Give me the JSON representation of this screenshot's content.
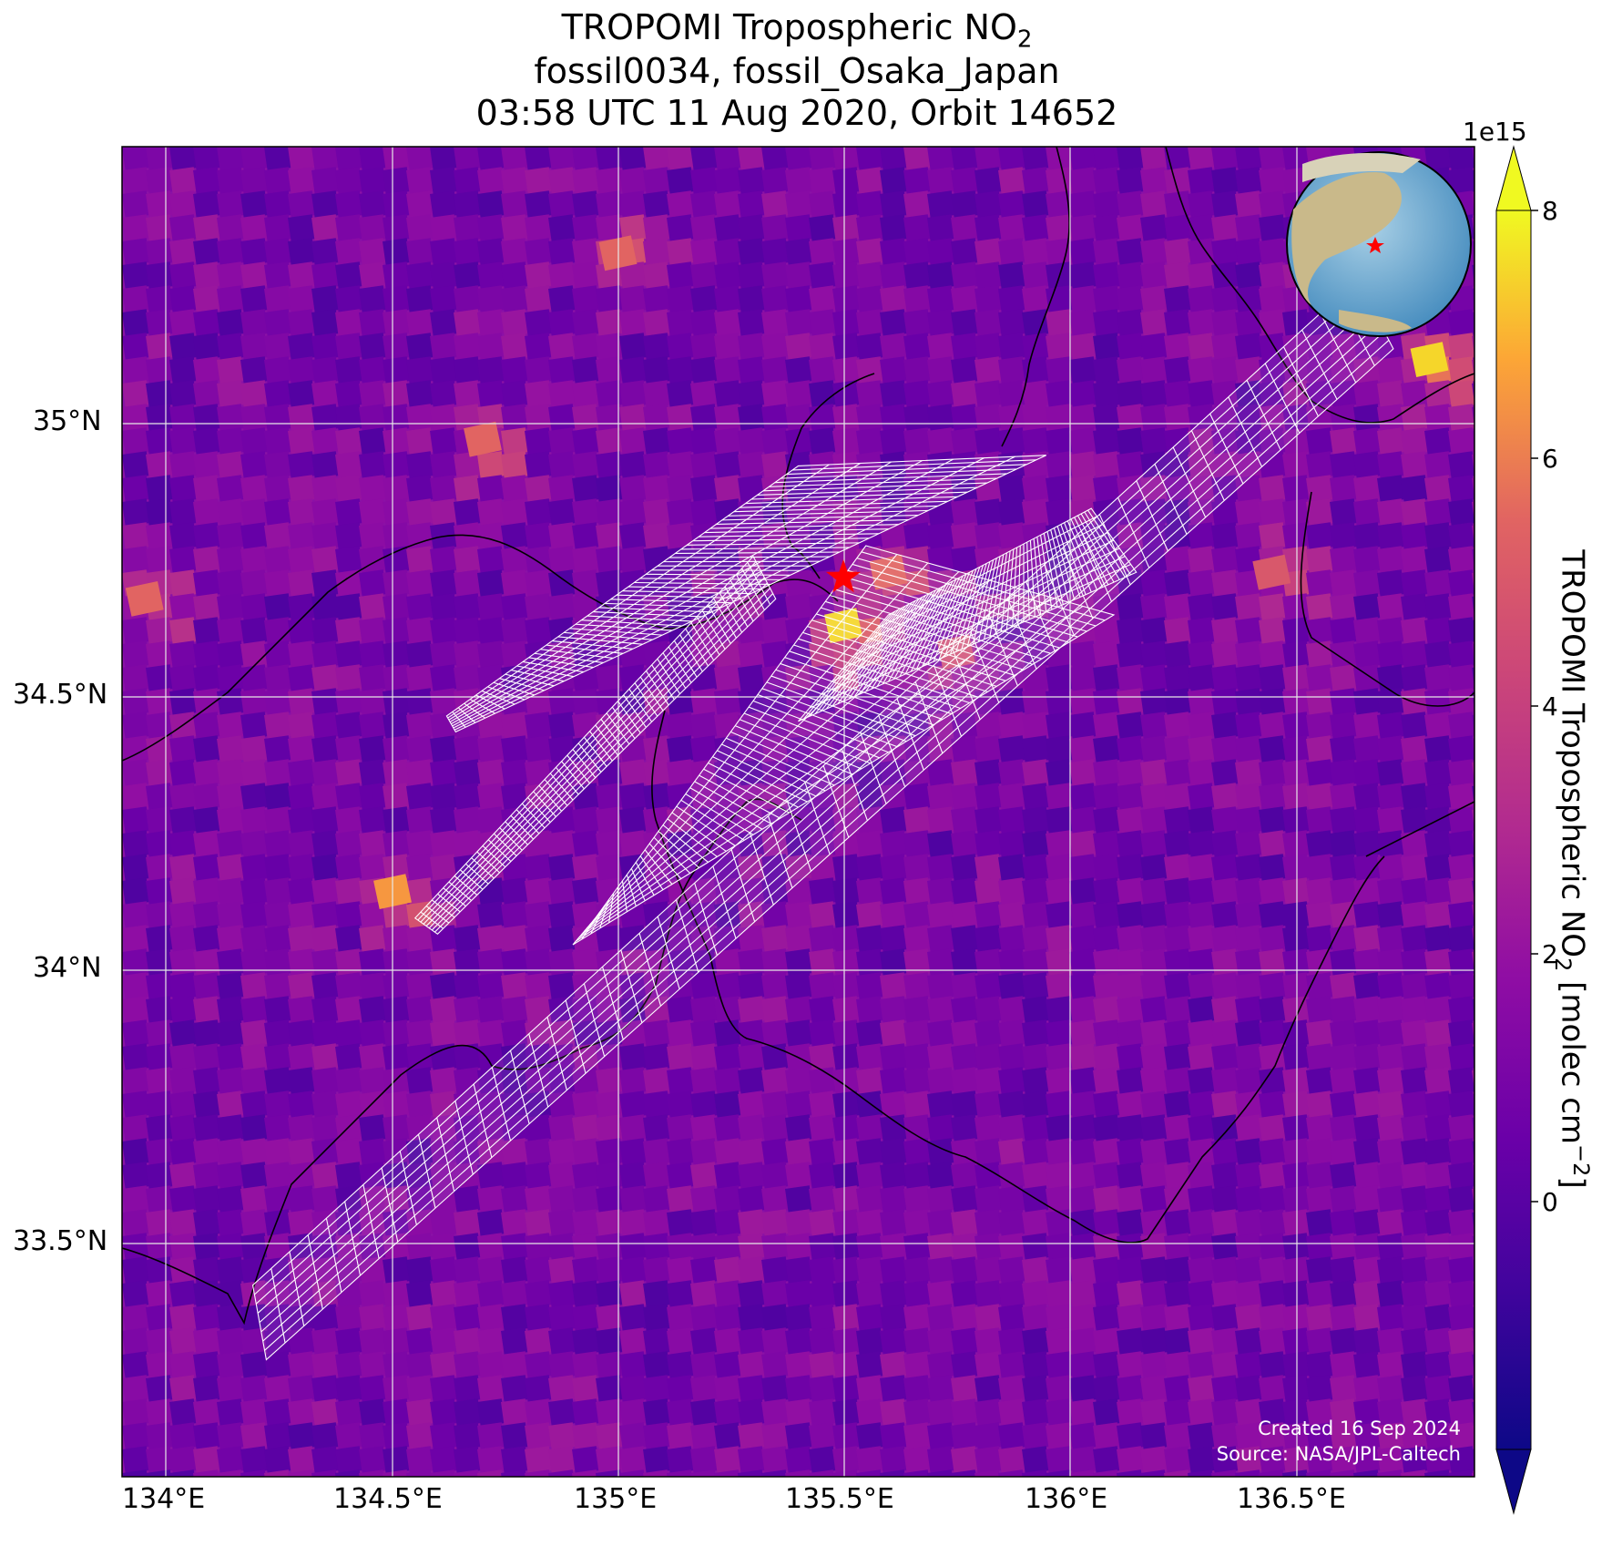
{
  "figure": {
    "title_line1_main": "TROPOMI Tropospheric NO",
    "title_line1_sub": "2",
    "title_line2": "fossil0034, fossil_Osaka_Japan",
    "title_line3": "03:58 UTC 11 Aug 2020, Orbit 14652",
    "credit_created": "Created 16 Sep 2024",
    "credit_source": "Source: NASA/JPL-Caltech"
  },
  "map": {
    "type": "heatmap",
    "lon_range": [
      133.9,
      136.9
    ],
    "lat_range": [
      33.0,
      35.5
    ],
    "lon_ticks": [
      134.0,
      134.5,
      135.0,
      135.5,
      136.0,
      136.5
    ],
    "lon_tick_labels": [
      "134°E",
      "134.5°E",
      "135°E",
      "135.5°E",
      "136°E",
      "136.5°E"
    ],
    "lat_ticks": [
      33.5,
      34.0,
      34.5,
      35.0
    ],
    "lat_tick_labels": [
      "33.5°N",
      "34°N",
      "34.5°N",
      "35°N"
    ],
    "gridlines": true,
    "target_lon": 135.5,
    "target_lat": 34.69,
    "target_marker": "red-star",
    "target_color": "#ff0000",
    "colormap": "plasma"
  },
  "colorbar": {
    "label_main": "TROPOMI Tropospheric NO",
    "label_sub": "2",
    "label_units_prefix": " [molec cm",
    "label_units_exp": "−2",
    "label_units_suffix": "]",
    "multiplier": "1e15",
    "range": [
      -2.0,
      8.0
    ],
    "ticks": [
      0,
      2,
      4,
      6,
      8
    ],
    "tick_labels": [
      "0",
      "2",
      "4",
      "6",
      "8"
    ],
    "extend": "both"
  },
  "inset": {
    "type": "globe",
    "marker": "red-star"
  },
  "chart_data": {
    "type": "heatmap",
    "title": "TROPOMI Tropospheric NO2",
    "xlabel": "",
    "ylabel": "",
    "x_range": [
      133.9,
      136.9
    ],
    "y_range": [
      33.0,
      35.5
    ],
    "value_units": "molec cm−2 (×1e15)",
    "hotspots": [
      {
        "lon": 135.5,
        "lat": 34.6,
        "value": 7.5
      },
      {
        "lon": 135.6,
        "lat": 34.7,
        "value": 5.5
      },
      {
        "lon": 135.75,
        "lat": 34.55,
        "value": 4.5
      },
      {
        "lon": 134.5,
        "lat": 34.1,
        "value": 6.5
      },
      {
        "lon": 136.8,
        "lat": 35.1,
        "value": 7.5
      },
      {
        "lon": 135.0,
        "lat": 35.3,
        "value": 5.5
      },
      {
        "lon": 134.7,
        "lat": 34.95,
        "value": 5.5
      },
      {
        "lon": 136.45,
        "lat": 34.7,
        "value": 5.0
      },
      {
        "lon": 133.95,
        "lat": 34.65,
        "value": 5.5
      }
    ],
    "background_value": 1.0
  }
}
